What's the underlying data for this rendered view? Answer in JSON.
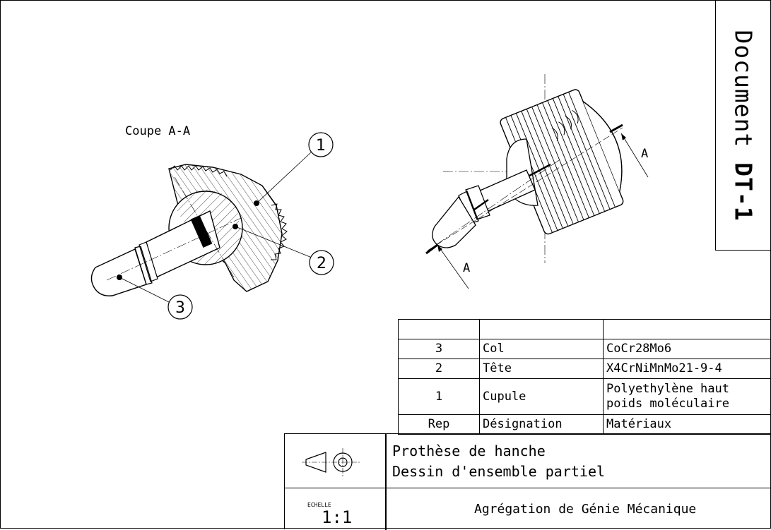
{
  "section_title": "Coupe A-A",
  "callouts": [
    "1",
    "2",
    "3"
  ],
  "section_arrow_label": "A",
  "document_label": "Document",
  "document_id": "DT-1",
  "nomenclature": {
    "header": [
      "",
      "",
      ""
    ],
    "rows": [
      {
        "rep": "3",
        "designation": "Col",
        "materiau": "CoCr28Mo6"
      },
      {
        "rep": "2",
        "designation": "Tête",
        "materiau": "X4CrNiMnMo21-9-4"
      },
      {
        "rep": "1",
        "designation": "Cupule",
        "materiau_l1": "Polyethylène haut",
        "materiau_l2": "poids moléculaire"
      }
    ],
    "columns": {
      "rep": "Rep",
      "designation": "Désignation",
      "materiau": "Matériaux"
    }
  },
  "cartouche": {
    "title_l1": "Prothèse de hanche",
    "title_l2": "Dessin d'ensemble partiel",
    "echelle_label": "ECHELLE",
    "echelle": "1:1",
    "organisation": "Agrégation de Génie Mécanique"
  }
}
